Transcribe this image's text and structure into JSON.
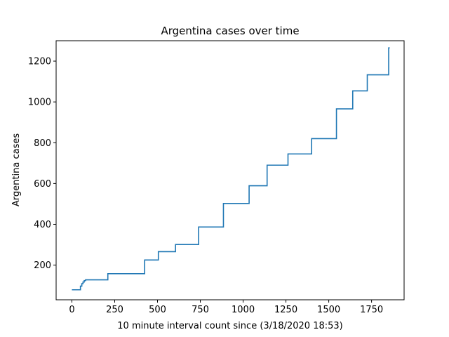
{
  "chart_data": {
    "type": "line",
    "title": "Argentina cases over time",
    "xlabel": "10 minute interval count since (3/18/2020 18:53)",
    "ylabel": "Argentina cases",
    "xlim": [
      -92,
      1940
    ],
    "ylim": [
      30,
      1300
    ],
    "xticks": [
      0,
      250,
      500,
      750,
      1000,
      1250,
      1500,
      1750
    ],
    "yticks": [
      200,
      400,
      600,
      800,
      1000,
      1200
    ],
    "grid": false,
    "line_color": "#1f77b4",
    "step": "post",
    "series": [
      {
        "x": [
          0,
          50,
          58,
          65,
          72,
          80,
          210,
          425,
          505,
          605,
          740,
          885,
          1035,
          1140,
          1262,
          1400,
          1545,
          1640,
          1725,
          1850,
          1856
        ],
        "y": [
          79,
          97,
          109,
          117,
          124,
          128,
          158,
          225,
          266,
          301,
          387,
          502,
          589,
          690,
          745,
          820,
          966,
          1054,
          1133,
          1265,
          1265
        ]
      }
    ]
  }
}
